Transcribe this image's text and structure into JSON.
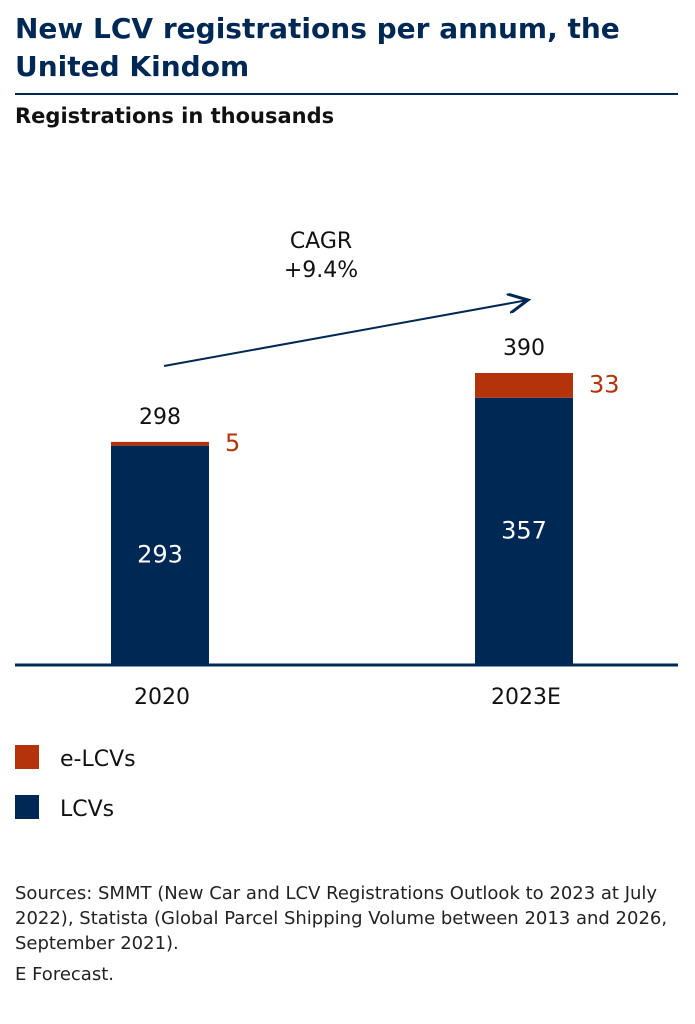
{
  "chart_data": {
    "type": "stacked-bar",
    "title": "New LCV registrations per annum, the United Kindom",
    "subtitle": "Registrations in thousands",
    "categories": [
      "2020",
      "2023E"
    ],
    "series": [
      {
        "name": "LCVs",
        "color": "#002855",
        "values": [
          293,
          357
        ]
      },
      {
        "name": "e-LCVs",
        "color": "#b5330a",
        "values": [
          5,
          33
        ]
      }
    ],
    "totals": [
      298,
      390
    ],
    "annotation": [
      "CAGR",
      "+9.4%"
    ],
    "sources": "Sources: SMMT (New Car and LCV Registrations Outlook to 2023 at July 2022), Statista (Global Parcel Shipping Volume between 2013 and 2026, September 2021).",
    "footnote": "E Forecast."
  }
}
